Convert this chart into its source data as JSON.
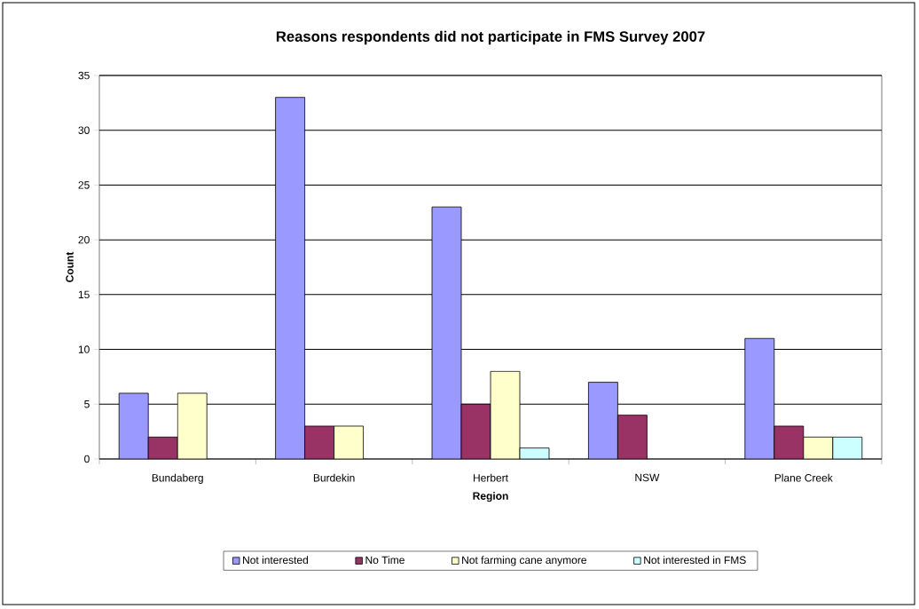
{
  "chart_data": {
    "type": "bar",
    "title": "Reasons respondents did not participate in FMS Survey 2007",
    "xlabel": "Region",
    "ylabel": "Count",
    "categories": [
      "Bundaberg",
      "Burdekin",
      "Herbert",
      "NSW",
      "Plane Creek"
    ],
    "series": [
      {
        "name": "Not interested",
        "color": "#9999ff",
        "values": [
          6,
          33,
          23,
          7,
          11
        ]
      },
      {
        "name": "No Time",
        "color": "#993366",
        "values": [
          2,
          3,
          5,
          4,
          3
        ]
      },
      {
        "name": "Not farming cane anymore",
        "color": "#ffffcc",
        "values": [
          6,
          3,
          8,
          null,
          2
        ]
      },
      {
        "name": "Not interested in FMS",
        "color": "#ccffff",
        "values": [
          null,
          null,
          1,
          null,
          2
        ]
      }
    ],
    "ylim": [
      0,
      35
    ],
    "yticks": [
      0,
      5,
      10,
      15,
      20,
      25,
      30,
      35
    ],
    "grid": "y",
    "legend": "bottom"
  }
}
